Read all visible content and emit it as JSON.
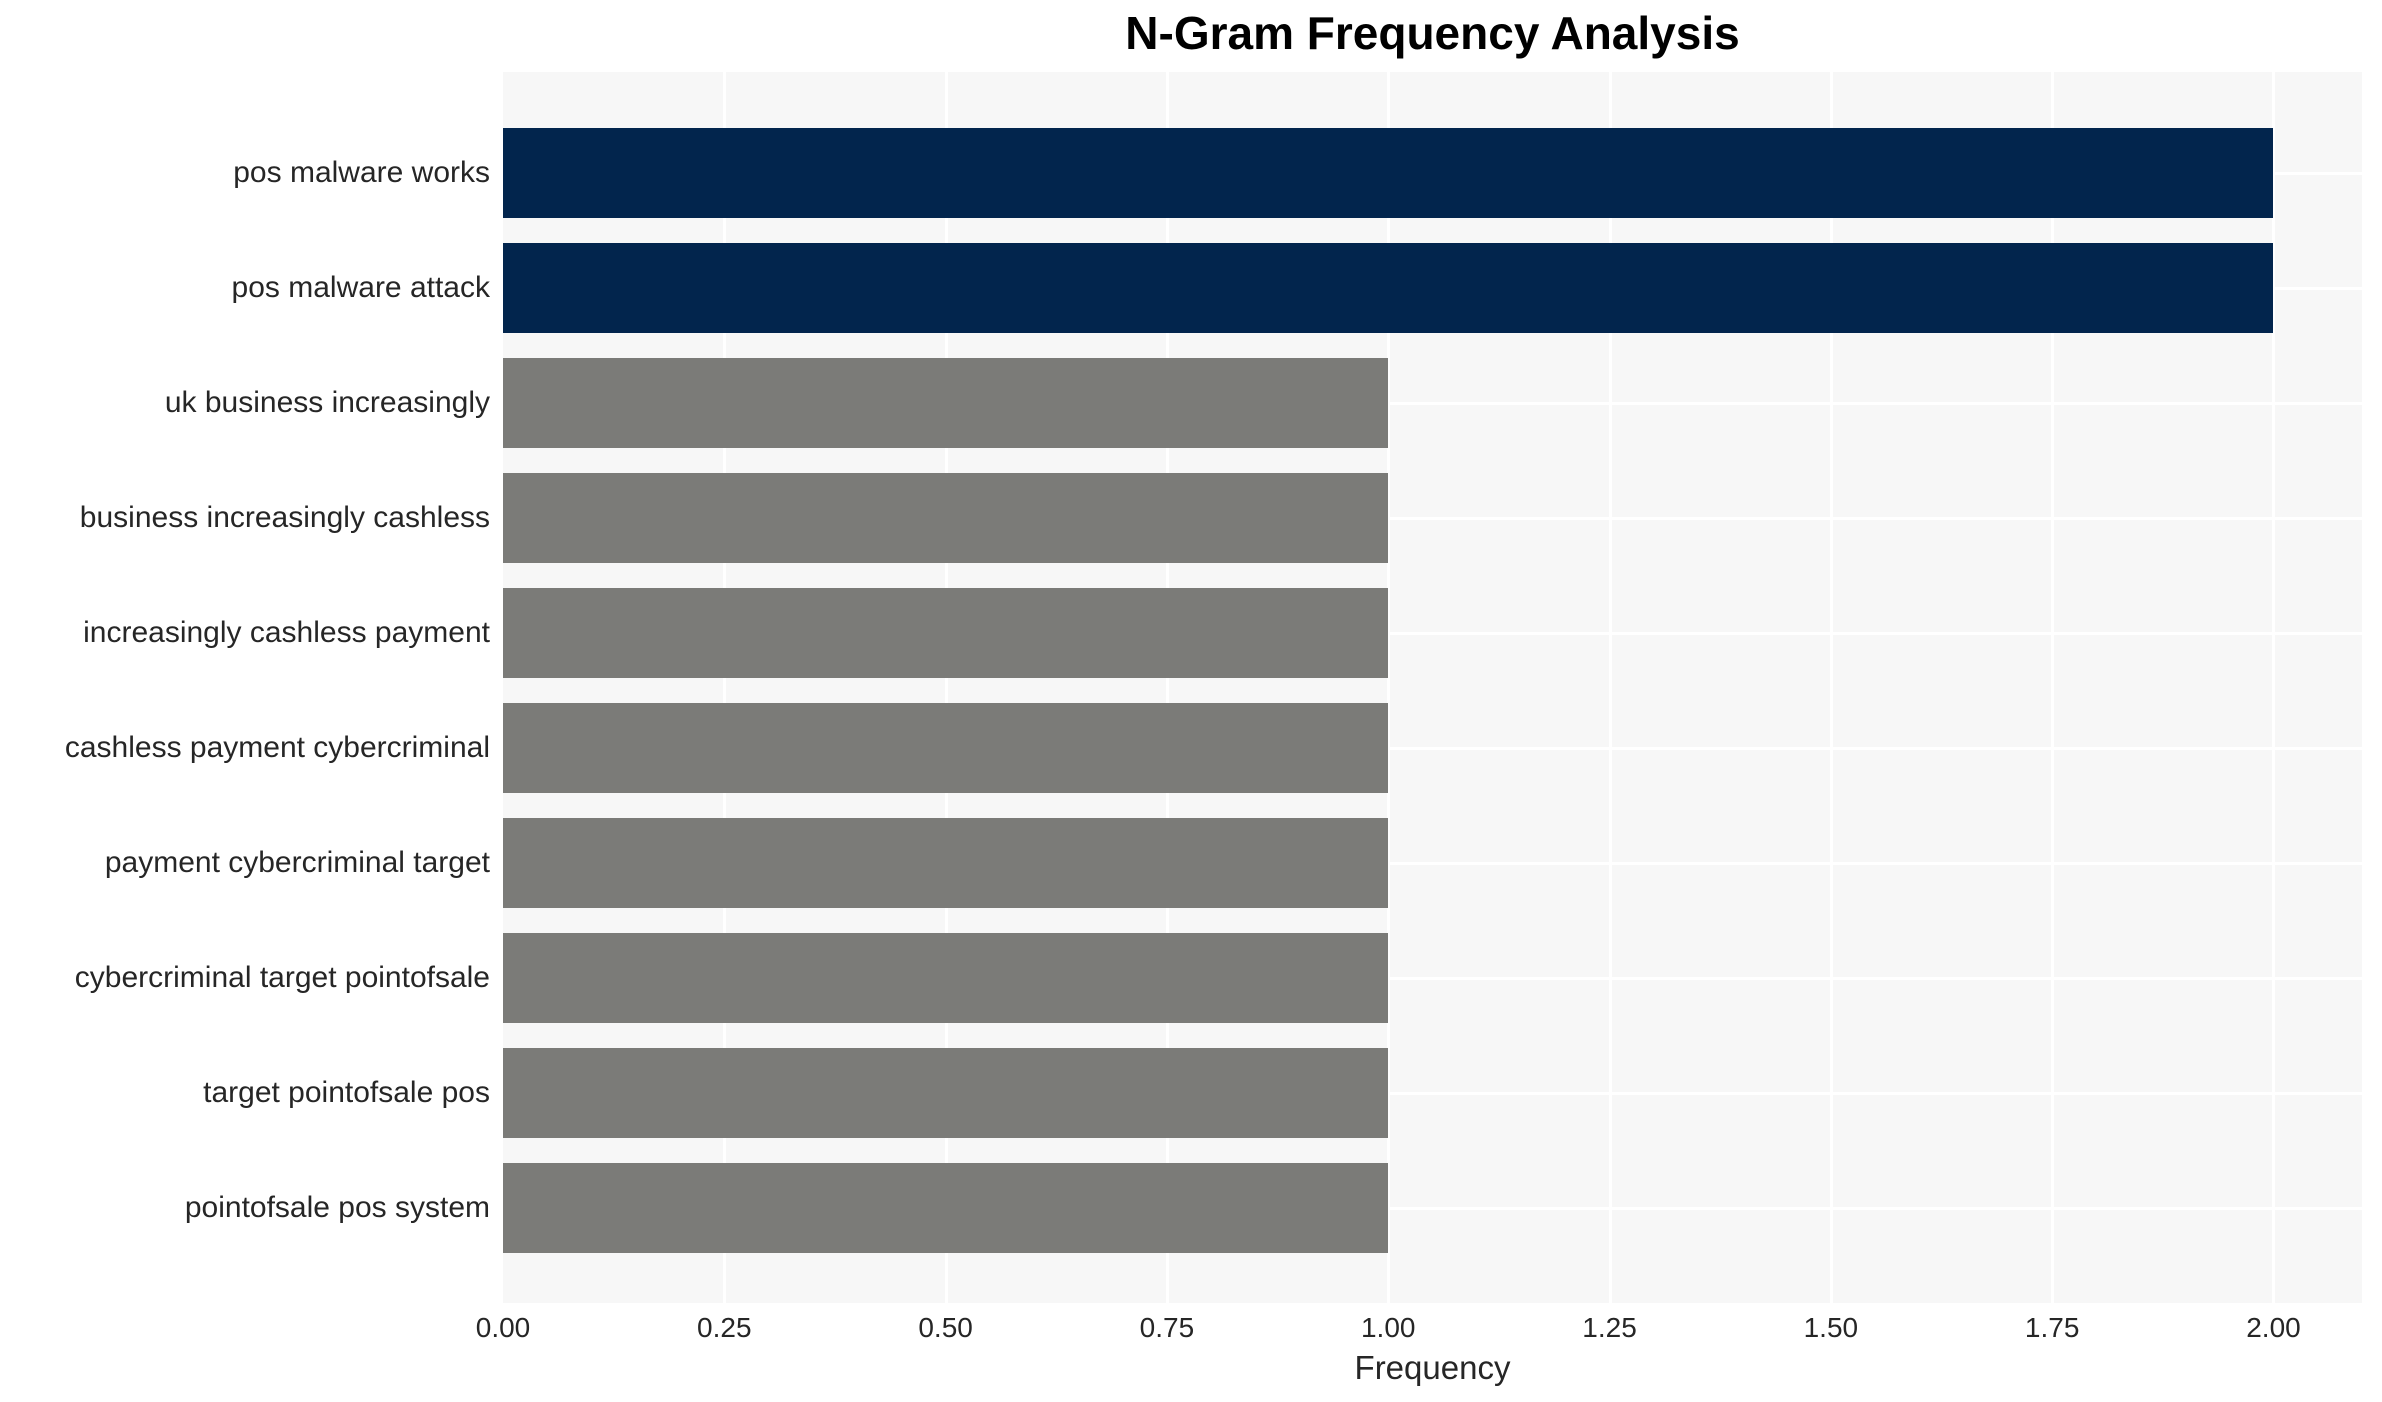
{
  "chart_data": {
    "type": "bar",
    "orientation": "horizontal",
    "title": "N-Gram Frequency Analysis",
    "xlabel": "Frequency",
    "ylabel": "",
    "categories": [
      "pos malware works",
      "pos malware attack",
      "uk business increasingly",
      "business increasingly cashless",
      "increasingly cashless payment",
      "cashless payment cybercriminal",
      "payment cybercriminal target",
      "cybercriminal target pointofsale",
      "target pointofsale pos",
      "pointofsale pos system"
    ],
    "values": [
      2,
      2,
      1,
      1,
      1,
      1,
      1,
      1,
      1,
      1
    ],
    "bar_colors": [
      "#02254d",
      "#02254d",
      "#7b7b78",
      "#7b7b78",
      "#7b7b78",
      "#7b7b78",
      "#7b7b78",
      "#7b7b78",
      "#7b7b78",
      "#7b7b78"
    ],
    "xlim": [
      0,
      2.1
    ],
    "xtick_values": [
      0,
      0.25,
      0.5,
      0.75,
      1.0,
      1.25,
      1.5,
      1.75,
      2.0
    ],
    "xtick_labels": [
      "0.00",
      "0.25",
      "0.50",
      "0.75",
      "1.00",
      "1.25",
      "1.50",
      "1.75",
      "2.00"
    ],
    "grid": {
      "show": true,
      "color": "#ffffff"
    },
    "legend": null,
    "colors": {
      "high_freq_bar": "#02254d",
      "low_freq_bar": "#7b7b78",
      "plot_background": "#f7f7f7",
      "page_background": "#ffffff",
      "gridline": "#ffffff",
      "tick_text": "#262626",
      "title_text": "#000000"
    }
  }
}
